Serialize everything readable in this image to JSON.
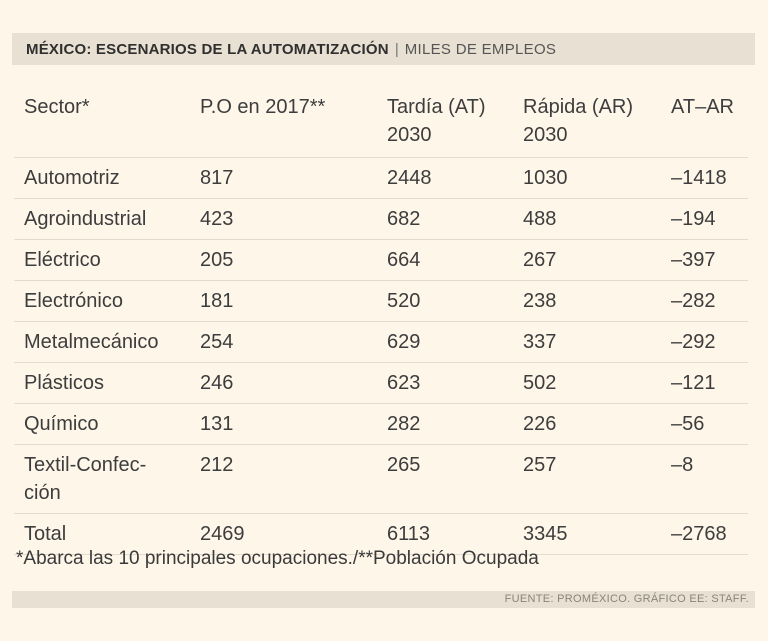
{
  "header": {
    "title": "MÉXICO: ESCENARIOS DE LA AUTOMATIZACIÓN",
    "separator": "|",
    "subtitle": "MILES DE EMPLEOS"
  },
  "table": {
    "columns": [
      "Sector*",
      "P.O en 2017**",
      "Tardía (AT) 2030",
      "Rápida (AR) 2030",
      "AT–AR"
    ],
    "rows": [
      [
        "Automotriz",
        "817",
        "2448",
        "1030",
        "–1418"
      ],
      [
        "Agroindustrial",
        "423",
        "682",
        "488",
        "–194"
      ],
      [
        "Eléctrico",
        "205",
        "664",
        "267",
        "–397"
      ],
      [
        "Electrónico",
        "181",
        "520",
        "238",
        "–282"
      ],
      [
        "Metalmecánico",
        "254",
        "629",
        "337",
        "–292"
      ],
      [
        "Plásticos",
        "246",
        "623",
        "502",
        "–121"
      ],
      [
        "Químico",
        "131",
        "282",
        "226",
        "–56"
      ],
      [
        "Textil-Confec-ción",
        "212",
        "265",
        "257",
        "–8"
      ],
      [
        "Total",
        "2469",
        "6113",
        "3345",
        "–2768"
      ]
    ]
  },
  "footnote": "*Abarca las 10 principales ocupaciones./**Población Ocupada",
  "source": "FUENTE: PROMÉXICO. GRÁFICO EE: STAFF."
}
